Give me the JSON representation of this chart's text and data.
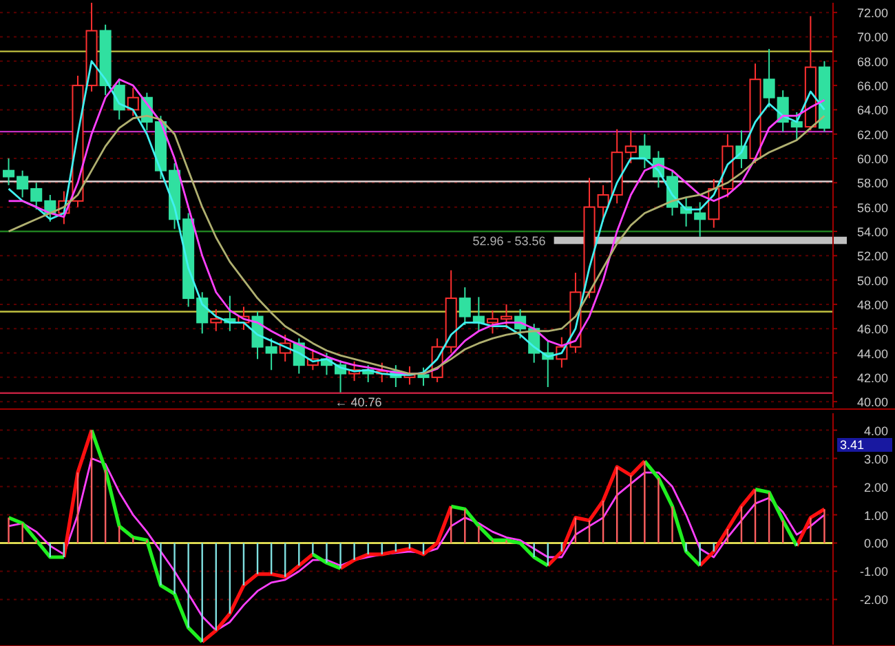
{
  "chart_data": [
    {
      "type": "candlestick",
      "categories": [
        null,
        null,
        null,
        null,
        null,
        null,
        null,
        null,
        null,
        null,
        null,
        null,
        null,
        null,
        null,
        null,
        null,
        null,
        null,
        null,
        null,
        null,
        null,
        null,
        null,
        null,
        null,
        null,
        null,
        null,
        null,
        null,
        null,
        null,
        null,
        null,
        null,
        null,
        null,
        null,
        null,
        null,
        null,
        null,
        null,
        null,
        null,
        null,
        null,
        null,
        null,
        null,
        null,
        null,
        null,
        null,
        null,
        null,
        null,
        null
      ],
      "ohlc": [
        [
          59,
          60,
          57.8,
          58.5
        ],
        [
          58.5,
          59,
          56.8,
          57.5
        ],
        [
          57.5,
          58,
          55.8,
          56.5
        ],
        [
          56.5,
          57,
          54.8,
          55.5
        ],
        [
          55.5,
          57.3,
          54.6,
          56.5
        ],
        [
          56.5,
          66.8,
          56,
          66
        ],
        [
          66,
          72.8,
          65.5,
          70.5
        ],
        [
          70.5,
          71,
          65.2,
          66
        ],
        [
          66,
          66.5,
          63.2,
          64
        ],
        [
          64,
          65.8,
          63.5,
          65
        ],
        [
          65,
          65.4,
          62.3,
          63
        ],
        [
          63,
          63.5,
          58.3,
          59
        ],
        [
          59,
          59.6,
          54.2,
          55
        ],
        [
          55,
          55.5,
          47.8,
          48.5
        ],
        [
          48.5,
          49,
          45.6,
          46.5
        ],
        [
          46.5,
          47.6,
          45.8,
          46.8
        ],
        [
          46.8,
          48.7,
          45.8,
          46.5
        ],
        [
          46.5,
          47.8,
          45.9,
          47
        ],
        [
          47,
          47.4,
          43.5,
          44.5
        ],
        [
          44.5,
          45.2,
          42.6,
          44
        ],
        [
          44,
          45.5,
          43.3,
          44.8
        ],
        [
          44.8,
          45.2,
          42.3,
          43
        ],
        [
          43,
          44.3,
          42.6,
          43.5
        ],
        [
          43.5,
          44,
          42.2,
          43
        ],
        [
          43,
          43.4,
          40.76,
          42.3
        ],
        [
          42.3,
          43.3,
          41.7,
          42.6
        ],
        [
          42.6,
          43,
          41.6,
          42.3
        ],
        [
          42.3,
          43.2,
          41.6,
          42.5
        ],
        [
          42.5,
          43,
          41.2,
          42
        ],
        [
          42,
          42.9,
          41.4,
          42.2
        ],
        [
          42.2,
          42.8,
          41.3,
          42
        ],
        [
          42,
          45.2,
          41.6,
          44.5
        ],
        [
          44.5,
          50.8,
          44,
          48.5
        ],
        [
          48.5,
          49.4,
          46.3,
          47
        ],
        [
          47,
          48.6,
          45.8,
          46.5
        ],
        [
          46.5,
          47.5,
          45.6,
          46.8
        ],
        [
          46.8,
          48,
          46,
          47
        ],
        [
          47,
          47.6,
          45.2,
          46
        ],
        [
          46,
          46.4,
          43.2,
          44
        ],
        [
          44,
          45,
          41.2,
          43.5
        ],
        [
          43.5,
          45.3,
          42.8,
          44.5
        ],
        [
          44.5,
          50.6,
          44,
          49
        ],
        [
          49,
          58.4,
          48.5,
          56
        ],
        [
          56,
          57.8,
          54.8,
          57
        ],
        [
          57,
          62.4,
          56.3,
          60.5
        ],
        [
          60.5,
          62.3,
          59.6,
          61
        ],
        [
          61,
          62,
          59.2,
          60
        ],
        [
          60,
          60.6,
          57.6,
          58.5
        ],
        [
          58.5,
          59,
          55.3,
          56
        ],
        [
          56,
          56.8,
          54.4,
          55.5
        ],
        [
          55.5,
          56.4,
          53.56,
          55
        ],
        [
          55,
          58.3,
          54.3,
          57.5
        ],
        [
          57.5,
          62,
          56.8,
          61
        ],
        [
          61,
          62.3,
          59.2,
          60
        ],
        [
          60,
          67.8,
          59.6,
          66.5
        ],
        [
          66.5,
          69,
          64.2,
          65
        ],
        [
          65,
          65.6,
          62.2,
          63
        ],
        [
          63,
          63.8,
          61.5,
          62.6
        ],
        [
          62.6,
          71.7,
          62.3,
          67.5
        ],
        [
          67.5,
          68,
          62.2,
          62.5
        ]
      ],
      "colors": [
        "#30e0a0",
        "#30e0a0",
        "#30e0a0",
        "#30e0a0",
        "#ff3030",
        "#ff3030",
        "#ff3030",
        "#30e0a0",
        "#30e0a0",
        "#ff3030",
        "#30e0a0",
        "#30e0a0",
        "#30e0a0",
        "#30e0a0",
        "#30e0a0",
        "#ff3030",
        "#30e0a0",
        "#ff3030",
        "#30e0a0",
        "#30e0a0",
        "#ff3030",
        "#30e0a0",
        "#ff3030",
        "#30e0a0",
        "#30e0a0",
        "#ff3030",
        "#30e0a0",
        "#ff3030",
        "#30e0a0",
        "#ff3030",
        "#30e0a0",
        "#ff3030",
        "#ff3030",
        "#30e0a0",
        "#30e0a0",
        "#ff3030",
        "#ff3030",
        "#30e0a0",
        "#30e0a0",
        "#30e0a0",
        "#ff3030",
        "#ff3030",
        "#ff3030",
        "#ff3030",
        "#ff3030",
        "#ff3030",
        "#30e0a0",
        "#30e0a0",
        "#30e0a0",
        "#30e0a0",
        "#30e0a0",
        "#ff3030",
        "#ff3030",
        "#30e0a0",
        "#ff3030",
        "#30e0a0",
        "#30e0a0",
        "#30e0a0",
        "#ff3030",
        "#30e0a0"
      ],
      "series": [
        {
          "type": "line",
          "color": "#40f0f0",
          "values": [
            57.5,
            56.5,
            56,
            55,
            55.5,
            62,
            68,
            66.5,
            64.5,
            64,
            62,
            59,
            56,
            51,
            48,
            47,
            46.5,
            46.5,
            45.5,
            45,
            44.5,
            44,
            43.3,
            43.5,
            42.8,
            42.5,
            42.6,
            42.3,
            42.2,
            42.2,
            42.4,
            43.5,
            45.5,
            46.5,
            46.5,
            46.2,
            46.2,
            45.5,
            44.5,
            43.7,
            44,
            46,
            51,
            55,
            58,
            60,
            60,
            59,
            57,
            55.8,
            55.8,
            57,
            59.5,
            60.5,
            63,
            64.5,
            63.5,
            63,
            65.5,
            64
          ]
        },
        {
          "type": "line",
          "color": "#ff40ff",
          "values": [
            56.5,
            56.5,
            56,
            55.5,
            55.2,
            58,
            62,
            65,
            66.5,
            66,
            64.5,
            63,
            60,
            56,
            52,
            49,
            47.5,
            46.8,
            46.5,
            45.8,
            45.2,
            44.7,
            44.2,
            43.7,
            43.3,
            43,
            42.8,
            42.6,
            42.4,
            42.3,
            42.3,
            42.7,
            43.8,
            45,
            45.8,
            46.3,
            46.5,
            46.5,
            46,
            45,
            44.6,
            45,
            47,
            50,
            54,
            57,
            59,
            59.5,
            59,
            58,
            57,
            56.5,
            57,
            58,
            60,
            62.5,
            63.5,
            63.5,
            64.2,
            64.8
          ]
        },
        {
          "type": "line",
          "color": "#b0b070",
          "values": [
            54,
            54.5,
            55,
            55.5,
            56,
            57,
            59,
            61,
            62.5,
            63.3,
            63.5,
            63.2,
            62,
            59,
            56,
            53.5,
            51.5,
            50,
            48.5,
            47.3,
            46.2,
            45.5,
            44.8,
            44.2,
            43.8,
            43.5,
            43.2,
            42.9,
            42.6,
            42.3,
            42.3,
            42.8,
            43.5,
            44.3,
            44.8,
            45.2,
            45.5,
            45.7,
            45.8,
            45.8,
            46,
            47,
            49,
            51,
            53,
            54.5,
            55.5,
            56,
            56.5,
            56.8,
            57,
            57.5,
            58,
            58.8,
            59.8,
            60.5,
            61,
            61.5,
            62.5,
            63.5
          ]
        }
      ],
      "ylim": [
        39.5,
        72.8
      ],
      "yticks": [
        {
          "value": 40,
          "label": "40.00"
        },
        {
          "value": 42,
          "label": "42.00"
        },
        {
          "value": 44,
          "label": "44.00"
        },
        {
          "value": 46,
          "label": "46.00"
        },
        {
          "value": 48,
          "label": "48.00"
        },
        {
          "value": 50,
          "label": "50.00"
        },
        {
          "value": 52,
          "label": "52.00"
        },
        {
          "value": 54,
          "label": "54.00"
        },
        {
          "value": 56,
          "label": "56.00"
        },
        {
          "value": 58,
          "label": "58.00"
        },
        {
          "value": 60,
          "label": "60.00"
        },
        {
          "value": 62,
          "label": "62.00"
        },
        {
          "value": 64,
          "label": "64.00"
        },
        {
          "value": 66,
          "label": "66.00"
        },
        {
          "value": 68,
          "label": "68.00"
        },
        {
          "value": 70,
          "label": "70.00"
        },
        {
          "value": 72,
          "label": "72.00"
        }
      ],
      "grid": "y",
      "ref_lines": [
        {
          "axis": "y",
          "value": 68.8,
          "color": "#c0c040"
        },
        {
          "axis": "y",
          "value": 62.2,
          "color": "#c030c0"
        },
        {
          "axis": "y",
          "value": 58.1,
          "color": "#e0d0d0"
        },
        {
          "axis": "y",
          "value": 54,
          "color": "#208020"
        },
        {
          "axis": "y",
          "value": 47.4,
          "color": "#c0c040"
        },
        {
          "axis": "y",
          "value": 40.7,
          "color": "#c02040"
        }
      ],
      "bands": [
        {
          "axis": "y",
          "from": 52.96,
          "to": 53.56,
          "label": "52.96 - 53.56",
          "color": "#c0c0c0"
        }
      ],
      "annotations": [
        {
          "text": "← 40.76",
          "y": 40.76
        }
      ]
    },
    {
      "type": "line",
      "categories": [
        null,
        null,
        null,
        null,
        null,
        null,
        null,
        null,
        null,
        null,
        null,
        null,
        null,
        null,
        null,
        null,
        null,
        null,
        null,
        null,
        null,
        null,
        null,
        null,
        null,
        null,
        null,
        null,
        null,
        null,
        null,
        null,
        null,
        null,
        null,
        null,
        null,
        null,
        null,
        null,
        null,
        null,
        null,
        null,
        null,
        null,
        null,
        null,
        null,
        null,
        null,
        null,
        null,
        null,
        null,
        null,
        null,
        null,
        null,
        null
      ],
      "series": [
        {
          "type": "bar",
          "color": "#ff6060",
          "values": [
            0.9,
            0.7,
            0.1,
            null,
            null,
            2.5,
            4.0,
            2.6,
            0.6,
            0.2,
            0.1,
            null,
            null,
            null,
            null,
            null,
            null,
            null,
            null,
            null,
            null,
            null,
            null,
            null,
            null,
            null,
            null,
            null,
            null,
            null,
            null,
            null,
            1.3,
            1.2,
            0.6,
            0.1,
            0.1,
            null,
            null,
            null,
            null,
            0.9,
            0.8,
            1.5,
            2.7,
            2.4,
            2.9,
            2.3,
            1.3,
            null,
            null,
            null,
            0.5,
            1.3,
            1.9,
            1.8,
            0.8,
            null,
            0.9,
            1.2
          ]
        },
        {
          "type": "bar",
          "color": "#80e0e0",
          "values": [
            null,
            null,
            null,
            -0.5,
            -0.5,
            null,
            null,
            null,
            null,
            null,
            null,
            -1.5,
            -1.8,
            -3.0,
            -3.5,
            -3.1,
            -2.5,
            -1.5,
            -1.1,
            -1.1,
            -1.2,
            -0.8,
            -0.4,
            -0.7,
            -0.9,
            -0.6,
            -0.4,
            -0.4,
            -0.3,
            -0.2,
            -0.4,
            null,
            null,
            null,
            null,
            null,
            null,
            null,
            -0.5,
            -0.8,
            -0.3,
            null,
            null,
            null,
            null,
            null,
            null,
            null,
            null,
            -0.3,
            -0.8,
            -0.3,
            null,
            null,
            null,
            null,
            null,
            -0.1,
            null,
            null
          ]
        },
        {
          "type": "line",
          "color": "#ff40ff",
          "values": [
            0.6,
            0.7,
            0.4,
            -0.1,
            -0.4,
            1.0,
            3.0,
            2.8,
            1.8,
            1.0,
            0.4,
            -0.3,
            -1.0,
            -1.8,
            -2.6,
            -3.1,
            -2.8,
            -2.2,
            -1.7,
            -1.4,
            -1.3,
            -1.0,
            -0.6,
            -0.6,
            -0.8,
            -0.6,
            -0.5,
            -0.4,
            -0.35,
            -0.3,
            -0.35,
            -0.2,
            0.6,
            0.9,
            0.7,
            0.4,
            0.2,
            0.1,
            -0.2,
            -0.5,
            -0.5,
            0.3,
            0.6,
            0.9,
            1.7,
            2.1,
            2.5,
            2.5,
            2.0,
            1.0,
            -0.2,
            -0.5,
            0.2,
            0.8,
            1.4,
            1.6,
            1.1,
            0.3,
            0.6,
            1.0
          ]
        },
        {
          "type": "line",
          "color": "#ff1010",
          "values": [
            null,
            null,
            null,
            null,
            -0.5,
            2.5,
            4.0,
            null,
            null,
            null,
            null,
            null,
            null,
            null,
            -3.5,
            -3.1,
            -2.5,
            -1.5,
            -1.1,
            -1.1,
            -1.2,
            -0.8,
            -0.4,
            null,
            -0.9,
            -0.6,
            -0.4,
            -0.4,
            -0.3,
            -0.2,
            -0.4,
            0.0,
            1.3,
            null,
            null,
            null,
            null,
            null,
            null,
            -0.8,
            -0.3,
            0.9,
            0.8,
            1.5,
            2.7,
            2.4,
            2.9,
            null,
            null,
            null,
            -0.8,
            -0.3,
            0.5,
            1.3,
            1.9,
            null,
            null,
            -0.1,
            0.9,
            1.2
          ]
        },
        {
          "type": "line",
          "color": "#20f020",
          "values": [
            0.9,
            0.7,
            0.1,
            -0.5,
            -0.5,
            null,
            4.0,
            2.6,
            0.6,
            0.2,
            0.1,
            -1.5,
            -1.8,
            -3.0,
            -3.5,
            null,
            null,
            null,
            null,
            null,
            null,
            null,
            -0.4,
            -0.7,
            -0.9,
            null,
            null,
            null,
            null,
            null,
            null,
            null,
            1.3,
            1.2,
            0.6,
            0.1,
            0.1,
            0.0,
            -0.5,
            -0.8,
            null,
            null,
            null,
            null,
            null,
            null,
            2.9,
            2.3,
            1.3,
            -0.3,
            -0.8,
            null,
            null,
            null,
            1.9,
            1.8,
            0.8,
            -0.1,
            null,
            null
          ]
        }
      ],
      "ylim": [
        -3.6,
        4.6
      ],
      "yticks": [
        {
          "value": -2,
          "label": "-2.00"
        },
        {
          "value": -1,
          "label": "-1.00"
        },
        {
          "value": 0,
          "label": "0.00"
        },
        {
          "value": 1,
          "label": "1.00"
        },
        {
          "value": 2,
          "label": "2.00"
        },
        {
          "value": 3,
          "label": "3.00"
        },
        {
          "value": 4,
          "label": "4.00"
        }
      ],
      "grid": "y",
      "ref_lines": [
        {
          "axis": "y",
          "value": 0,
          "color": "#ffff60"
        }
      ],
      "annotations": [
        "3.41"
      ]
    }
  ]
}
